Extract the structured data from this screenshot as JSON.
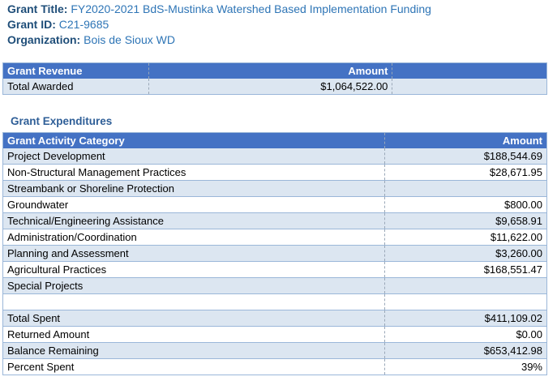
{
  "grant": {
    "title_label": "Grant Title:",
    "title_value": "FY2020-2021 BdS-Mustinka Watershed Based Implementation Funding",
    "id_label": "Grant ID:",
    "id_value": "C21-9685",
    "org_label": "Organization:",
    "org_value": "Bois de Sioux WD"
  },
  "revenue": {
    "header_label": "Grant Revenue",
    "header_amount": "Amount",
    "row_label": "Total Awarded",
    "row_amount": "$1,064,522.00"
  },
  "expenditures": {
    "title": "Grant Expenditures",
    "header_label": "Grant Activity Category",
    "header_amount": "Amount",
    "rows": [
      {
        "label": "Project Development",
        "amount": "$188,544.69"
      },
      {
        "label": "Non-Structural Management Practices",
        "amount": "$28,671.95"
      },
      {
        "label": "Streambank or Shoreline Protection",
        "amount": ""
      },
      {
        "label": "Groundwater",
        "amount": "$800.00"
      },
      {
        "label": "Technical/Engineering Assistance",
        "amount": "$9,658.91"
      },
      {
        "label": "Administration/Coordination",
        "amount": "$11,622.00"
      },
      {
        "label": "Planning and Assessment",
        "amount": "$3,260.00"
      },
      {
        "label": "Agricultural Practices",
        "amount": "$168,551.47"
      },
      {
        "label": "Special Projects",
        "amount": ""
      }
    ],
    "totals": [
      {
        "label": "Total Spent",
        "amount": "$411,109.02"
      },
      {
        "label": "Returned Amount",
        "amount": "$0.00"
      },
      {
        "label": "Balance Remaining",
        "amount": "$653,412.98"
      },
      {
        "label": "Percent Spent",
        "amount": "39%"
      }
    ]
  },
  "colors": {
    "header_bg": "#4472c4",
    "band_bg": "#dce6f1",
    "label_text": "#1f4e79"
  }
}
